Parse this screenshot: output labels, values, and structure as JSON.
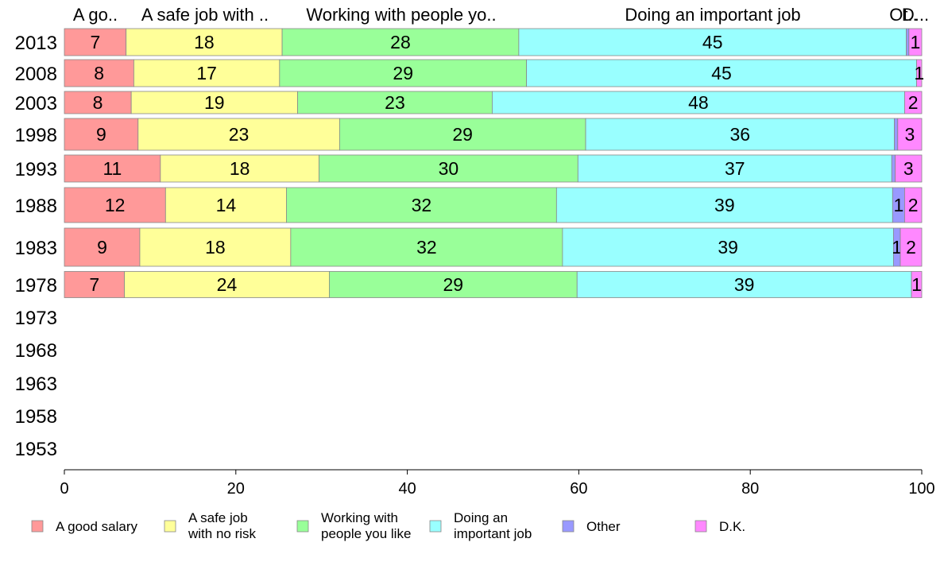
{
  "chart_data": {
    "type": "bar",
    "orientation": "horizontal",
    "stacked": true,
    "xlim": [
      0,
      100
    ],
    "x_ticks": [
      "0",
      "20",
      "40",
      "60",
      "80",
      "100"
    ],
    "grid": false,
    "legend_position": "bottom",
    "categories": [
      "2013",
      "2008",
      "2003",
      "1998",
      "1993",
      "1988",
      "1983",
      "1978",
      "1973",
      "1968",
      "1963",
      "1958",
      "1953"
    ],
    "column_headers": [
      "A go..",
      "A safe job with ..",
      "Working with people yo..",
      "Doing an important job",
      "Ot..",
      "D..."
    ],
    "series": [
      {
        "name": "A good salary",
        "legend_lines": [
          "A good salary"
        ],
        "color": "#ff9999",
        "values": [
          7.2,
          8.1,
          7.8,
          8.6,
          11.2,
          11.8,
          8.8,
          7.0,
          null,
          null,
          null,
          null,
          null
        ],
        "labels": [
          "7",
          "8",
          "8",
          "9",
          "11",
          "12",
          "9",
          "7",
          "",
          "",
          "",
          "",
          ""
        ]
      },
      {
        "name": "A safe job with no risk",
        "legend_lines": [
          "A safe job",
          "with no risk"
        ],
        "color": "#ffff99",
        "values": [
          18.2,
          17.0,
          19.4,
          23.5,
          18.5,
          14.1,
          17.6,
          23.9,
          null,
          null,
          null,
          null,
          null
        ],
        "labels": [
          "18",
          "17",
          "19",
          "23",
          "18",
          "14",
          "18",
          "24",
          "",
          "",
          "",
          "",
          ""
        ]
      },
      {
        "name": "Working with people you like",
        "legend_lines": [
          "Working with",
          "people you like"
        ],
        "color": "#99ff99",
        "values": [
          27.6,
          28.8,
          22.7,
          28.7,
          30.2,
          31.5,
          31.7,
          28.9,
          null,
          null,
          null,
          null,
          null
        ],
        "labels": [
          "28",
          "29",
          "23",
          "29",
          "30",
          "32",
          "32",
          "29",
          "",
          "",
          "",
          "",
          ""
        ]
      },
      {
        "name": "Doing an important job",
        "legend_lines": [
          "Doing an",
          "important job"
        ],
        "color": "#99ffff",
        "values": [
          45.2,
          45.5,
          48.1,
          36.0,
          36.6,
          39.2,
          38.6,
          39.0,
          null,
          null,
          null,
          null,
          null
        ],
        "labels": [
          "45",
          "45",
          "48",
          "36",
          "37",
          "39",
          "39",
          "39",
          "",
          "",
          "",
          "",
          ""
        ]
      },
      {
        "name": "Other",
        "legend_lines": [
          "Other"
        ],
        "color": "#9999ff",
        "values": [
          0.3,
          0.0,
          0.0,
          0.4,
          0.4,
          1.4,
          0.8,
          0.0,
          null,
          null,
          null,
          null,
          null
        ],
        "labels": [
          "",
          "",
          "",
          "",
          "",
          "1",
          "1",
          "",
          "",
          "",
          "",
          "",
          ""
        ]
      },
      {
        "name": "D.K.",
        "legend_lines": [
          "D.K."
        ],
        "color": "#ff88ff",
        "values": [
          1.5,
          0.6,
          2.0,
          2.8,
          3.1,
          2.0,
          2.5,
          1.2,
          null,
          null,
          null,
          null,
          null
        ],
        "labels": [
          "1",
          "1",
          "2",
          "3",
          "3",
          "2",
          "2",
          "1",
          "",
          "",
          "",
          "",
          ""
        ]
      }
    ]
  }
}
